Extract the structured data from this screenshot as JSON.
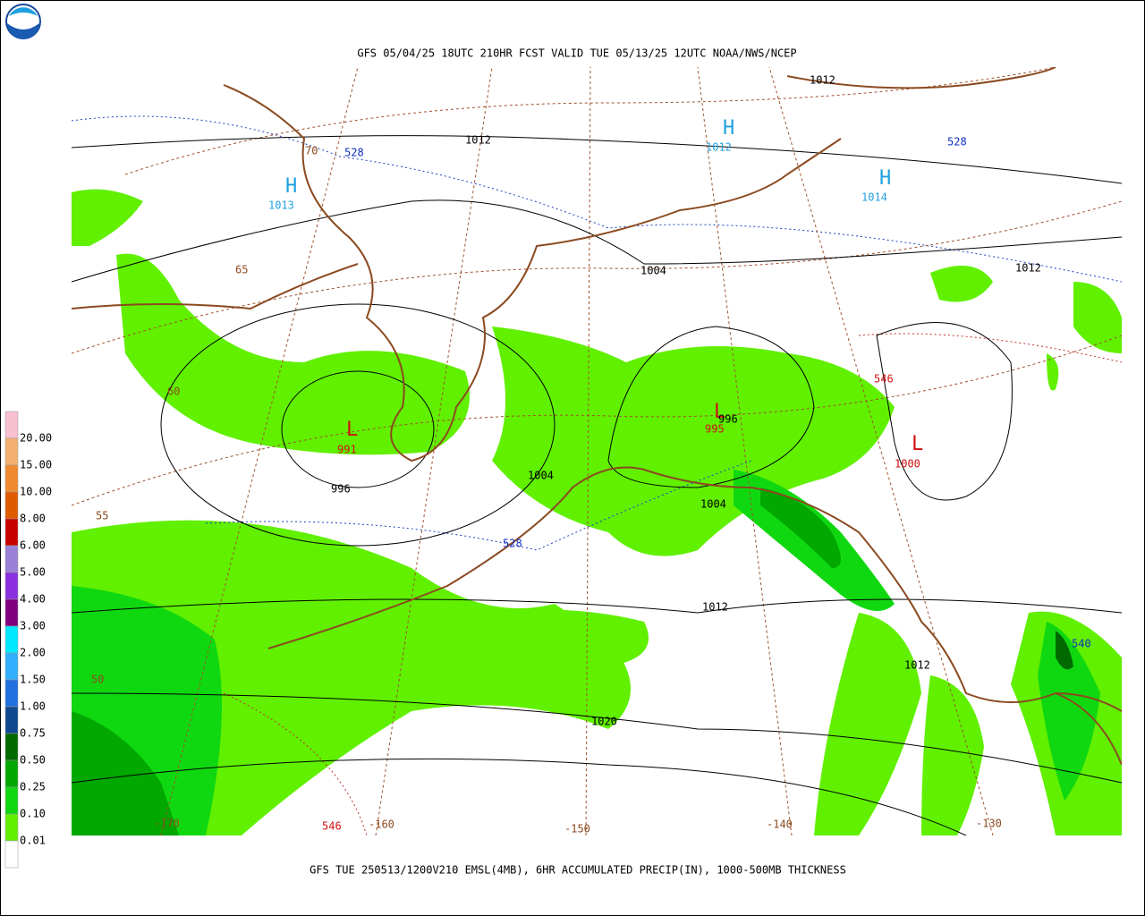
{
  "header": {
    "title": "GFS 05/04/25 18UTC 210HR FCST VALID TUE 05/13/25 12UTC NOAA/NWS/NCEP"
  },
  "footer": {
    "caption": "GFS TUE 250513/1200V210 EMSL(4MB), 6HR ACCUMULATED PRECIP(IN), 1000-500MB THICKNESS"
  },
  "legend": {
    "labels": [
      "20.00",
      "15.00",
      "10.00",
      "8.00",
      "6.00",
      "5.00",
      "4.00",
      "3.00",
      "2.00",
      "1.50",
      "1.00",
      "0.75",
      "0.50",
      "0.25",
      "0.10",
      "0.01"
    ],
    "colors": [
      "#f8c0d0",
      "#f4b070",
      "#f08a30",
      "#e05a00",
      "#c80000",
      "#9a80d8",
      "#8a30e0",
      "#800080",
      "#00e8ff",
      "#30b0ff",
      "#2070e0",
      "#104890",
      "#006a00",
      "#00a800",
      "#10d810",
      "#60f000",
      "#ffffff"
    ]
  },
  "map": {
    "labels": [
      "1012",
      "1012",
      "528",
      "H",
      "1012",
      "H",
      "1014",
      "528",
      "H",
      "1013",
      "70",
      "65",
      "60",
      "55",
      "50",
      "1004",
      "1012",
      "L",
      "991",
      "996",
      "1004",
      "L",
      "995",
      "996",
      "546",
      "L",
      "1000",
      "1004",
      "528",
      "1012",
      "540",
      "1012",
      "1020",
      "-170",
      "546",
      "-160",
      "-150",
      "-140",
      "-130"
    ]
  }
}
